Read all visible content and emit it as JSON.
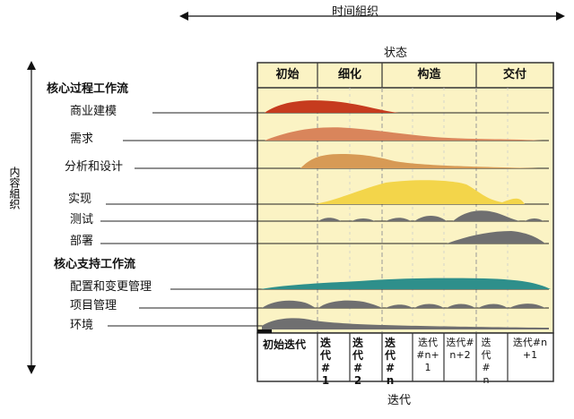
{
  "top_axis_label": "时间組织",
  "left_axis_label": "内容組织",
  "phases_title": "状态",
  "phases": [
    "初始",
    "细化",
    "构造",
    "交付"
  ],
  "core_process_title": "核心过程工作流",
  "core_process_items": [
    "商业建模",
    "需求",
    "分析和设计",
    "实现",
    "测试",
    "部署"
  ],
  "core_support_title": "核心支持工作流",
  "core_support_items": [
    "配置和变更管理",
    "项目管理",
    "环境"
  ],
  "iterations": [
    "初始迭代",
    "迭代#1",
    "迭代#2",
    "迭代#n",
    "迭代#n+1",
    "迭代#n+2",
    "迭代#n",
    "迭代#n+1"
  ],
  "iterations_title": "迭代",
  "colors": {
    "panel_bg": "#fbf3c4",
    "business_modeling": "#c63b1e",
    "requirements": "#d9855b",
    "analysis_design": "#d79a55",
    "implementation": "#f3d54a",
    "testing": "#6f6f70",
    "deployment": "#6f6f70",
    "config_change": "#2e8f8b",
    "project_mgmt": "#6f6f70",
    "environment": "#6f6f70"
  }
}
